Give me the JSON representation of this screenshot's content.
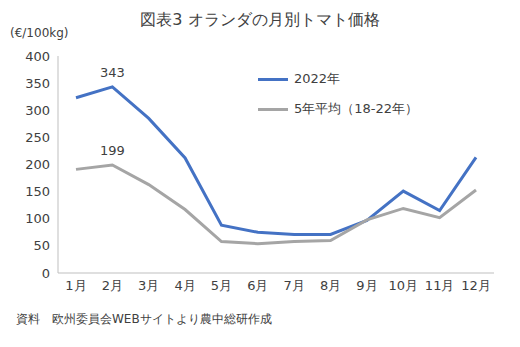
{
  "chart_data": {
    "type": "line",
    "title": "図表3 オランダの月別トマト価格",
    "y_label": "(€/100kg)",
    "source": "資料　欧州委員会WEBサイトより農中総研作成",
    "categories": [
      "1月",
      "2月",
      "3月",
      "4月",
      "5月",
      "6月",
      "7月",
      "8月",
      "9月",
      "10月",
      "11月",
      "12月"
    ],
    "series": [
      {
        "name": "2022年",
        "color": "#4472c4",
        "values": [
          323,
          343,
          285,
          212,
          88,
          75,
          71,
          71,
          97,
          151,
          115,
          213
        ],
        "value_labels": [
          null,
          "343",
          null,
          null,
          null,
          null,
          null,
          null,
          null,
          null,
          null,
          null
        ]
      },
      {
        "name": "5年平均（18-22年）",
        "color": "#a5a5a5",
        "values": [
          191,
          199,
          163,
          117,
          58,
          54,
          58,
          60,
          98,
          119,
          102,
          153
        ],
        "value_labels": [
          null,
          "199",
          null,
          null,
          null,
          null,
          null,
          null,
          null,
          null,
          null,
          null
        ]
      }
    ],
    "ylim": [
      0,
      400
    ],
    "yticks": [
      0,
      50,
      100,
      150,
      200,
      250,
      300,
      350,
      400
    ],
    "grid": false,
    "legend": "upper right"
  }
}
